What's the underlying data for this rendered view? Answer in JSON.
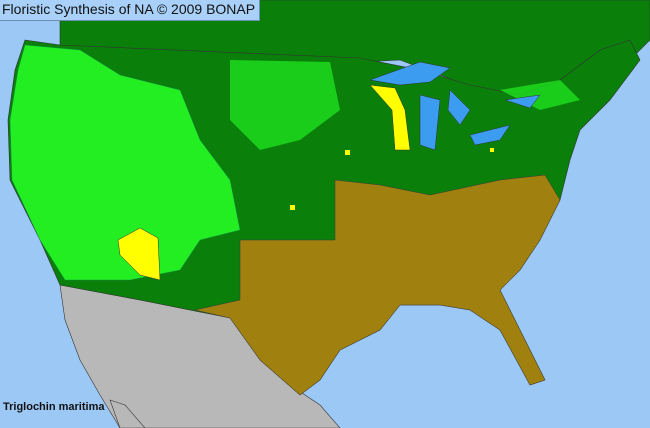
{
  "title": "Floristic Synthesis of NA © 2009 BONAP",
  "species": "Triglochin maritima",
  "legend_colors": {
    "ocean": "#9cc8f5",
    "lakes": "#3b9cf0",
    "present_native": "#0a7f0a",
    "present_county": "#22ee22",
    "rare_or_adventive": "#ffff00",
    "absent_state": "#a0800f",
    "outside_region": "#b8b8b8"
  }
}
